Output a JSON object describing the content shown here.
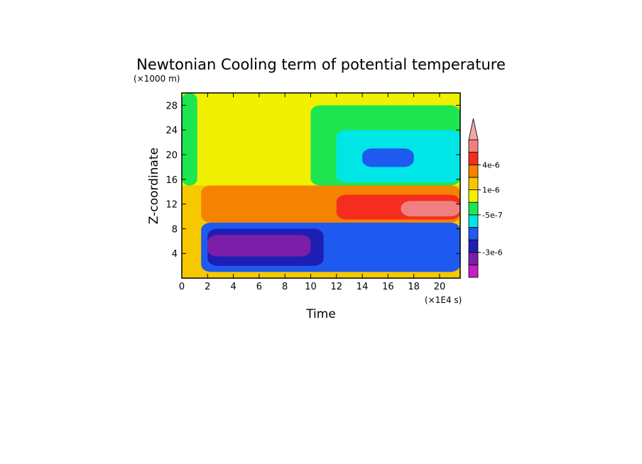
{
  "chart_data": {
    "type": "heatmap",
    "title": "Newtonian Cooling term of potential temperature",
    "xlabel": "Time",
    "ylabel": "Z-coordinate",
    "x_unit_label": "(×1E4 s)",
    "y_unit_label": "(×1000 m)",
    "xlim": [
      0,
      21.6
    ],
    "ylim": [
      0,
      30
    ],
    "x_ticks": [
      "0",
      "2",
      "4",
      "6",
      "8",
      "10",
      "12",
      "14",
      "16",
      "18",
      "20"
    ],
    "y_ticks": [
      "4",
      "8",
      "12",
      "16",
      "20",
      "24",
      "28"
    ],
    "colorbar": {
      "colors": [
        "#c81ec8",
        "#7b1ea8",
        "#1e1eb4",
        "#1e5af0",
        "#00e6e6",
        "#1ee650",
        "#f0f000",
        "#f5c800",
        "#f58200",
        "#f52d1e",
        "#f08080",
        "#f0a8a8"
      ],
      "labels": [
        "-3e-6",
        "-5e-7",
        "1e-6",
        "4e-6"
      ]
    },
    "regions": [
      {
        "name": "stratosphere-background",
        "x": [
          0,
          21.6
        ],
        "y": [
          15,
          30
        ],
        "level": "0 to 1e-6",
        "color": "#f0f000"
      },
      {
        "name": "lower-background",
        "x": [
          0,
          21.6
        ],
        "y": [
          0,
          15
        ],
        "level": "1e-6 to 2e-6",
        "color": "#f5c800"
      },
      {
        "name": "left-edge-strip",
        "x": [
          0,
          1.2
        ],
        "y": [
          15,
          30
        ],
        "level": "-5e-7 to 0",
        "color": "#1ee650"
      },
      {
        "name": "upper-negative-band",
        "x": [
          10,
          21.6
        ],
        "y": [
          15,
          28
        ],
        "level": "-5e-7 to 0",
        "color": "#1ee650"
      },
      {
        "name": "upper-cyan-core",
        "x": [
          12,
          21.6
        ],
        "y": [
          15.5,
          24
        ],
        "level": "-1e-6 to -5e-7",
        "color": "#00e6e6"
      },
      {
        "name": "upper-blue-patches",
        "x": [
          14,
          18
        ],
        "y": [
          18,
          21
        ],
        "level": "-2e-6 to -1e-6",
        "color": "#1e5af0"
      },
      {
        "name": "orange-layer",
        "x": [
          1.5,
          21.6
        ],
        "y": [
          9,
          15
        ],
        "level": "2e-6 to 3e-6",
        "color": "#f58200"
      },
      {
        "name": "red-core",
        "x": [
          12,
          21.6
        ],
        "y": [
          9.5,
          13.5
        ],
        "level": "3e-6 to 4e-6",
        "color": "#f52d1e"
      },
      {
        "name": "pink-core",
        "x": [
          17,
          21.6
        ],
        "y": [
          10,
          12.5
        ],
        "level": "> 4e-6",
        "color": "#f08080"
      },
      {
        "name": "lower-blue-layer",
        "x": [
          1.5,
          21.6
        ],
        "y": [
          1,
          9
        ],
        "level": "-2e-6 to -1e-6",
        "color": "#1e5af0"
      },
      {
        "name": "lower-navy-core",
        "x": [
          2,
          11
        ],
        "y": [
          2,
          8
        ],
        "level": "-3e-6 to -2e-6",
        "color": "#1e1eb4"
      },
      {
        "name": "purple-cores",
        "x": [
          2,
          10
        ],
        "y": [
          3.5,
          7
        ],
        "level": "-4e-6 to -3e-6",
        "color": "#7b1ea8"
      }
    ]
  }
}
